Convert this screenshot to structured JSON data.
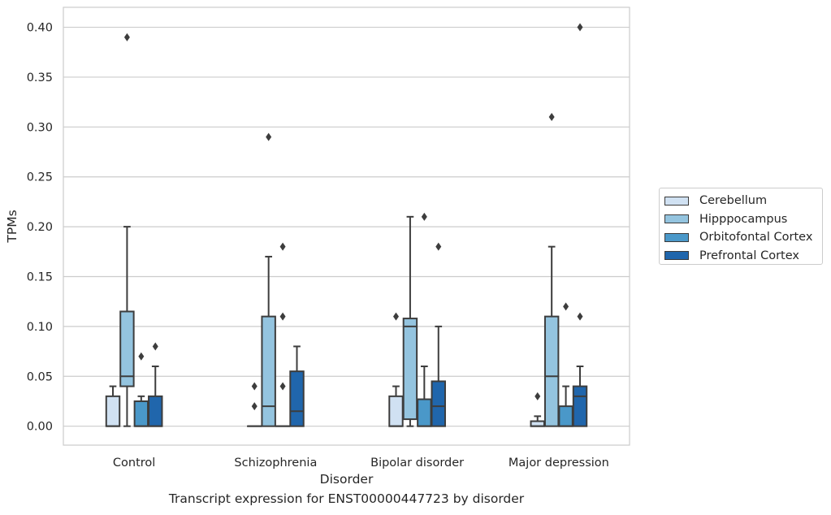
{
  "caption": "Transcript expression for ENST00000447723 by disorder",
  "chart_data": {
    "type": "boxplot",
    "xlabel": "Disorder",
    "ylabel": "TPMs",
    "ylim": [
      -0.019,
      0.42
    ],
    "yticks": [
      0.0,
      0.05,
      0.1,
      0.15,
      0.2,
      0.25,
      0.3,
      0.35,
      0.4
    ],
    "ytick_labels": [
      "0.00",
      "0.05",
      "0.10",
      "0.15",
      "0.20",
      "0.25",
      "0.30",
      "0.35",
      "0.40"
    ],
    "categories": [
      "Control",
      "Schizophrenia",
      "Bipolar disorder",
      "Major depression"
    ],
    "grid": true,
    "legend_position": "right",
    "series": [
      {
        "name": "Cerebellum",
        "color": "#d0e1f2",
        "boxes": [
          {
            "q1": 0.0,
            "median": 0.0,
            "q3": 0.03,
            "whisker_low": 0.0,
            "whisker_high": 0.04,
            "outliers": []
          },
          {
            "q1": 0.0,
            "median": 0.0,
            "q3": 0.0,
            "whisker_low": 0.0,
            "whisker_high": 0.0,
            "outliers": [
              0.02,
              0.04
            ]
          },
          {
            "q1": 0.0,
            "median": 0.0,
            "q3": 0.03,
            "whisker_low": 0.0,
            "whisker_high": 0.04,
            "outliers": [
              0.11
            ]
          },
          {
            "q1": 0.0,
            "median": 0.0,
            "q3": 0.005,
            "whisker_low": 0.0,
            "whisker_high": 0.01,
            "outliers": [
              0.03
            ]
          }
        ]
      },
      {
        "name": "Hipppocampus",
        "color": "#94c4df",
        "boxes": [
          {
            "q1": 0.04,
            "median": 0.05,
            "q3": 0.115,
            "whisker_low": 0.0,
            "whisker_high": 0.2,
            "outliers": [
              0.39
            ]
          },
          {
            "q1": 0.0,
            "median": 0.02,
            "q3": 0.11,
            "whisker_low": 0.0,
            "whisker_high": 0.17,
            "outliers": [
              0.29
            ]
          },
          {
            "q1": 0.007,
            "median": 0.1,
            "q3": 0.108,
            "whisker_low": 0.0,
            "whisker_high": 0.21,
            "outliers": []
          },
          {
            "q1": 0.0,
            "median": 0.05,
            "q3": 0.11,
            "whisker_low": 0.0,
            "whisker_high": 0.18,
            "outliers": [
              0.31
            ]
          }
        ]
      },
      {
        "name": "Orbitofontal Cortex",
        "color": "#4a98c9",
        "boxes": [
          {
            "q1": 0.0,
            "median": 0.0,
            "q3": 0.025,
            "whisker_low": 0.0,
            "whisker_high": 0.03,
            "outliers": [
              0.07
            ]
          },
          {
            "q1": 0.0,
            "median": 0.0,
            "q3": 0.0,
            "whisker_low": 0.0,
            "whisker_high": 0.0,
            "outliers": [
              0.04,
              0.11,
              0.18
            ]
          },
          {
            "q1": 0.0,
            "median": 0.0,
            "q3": 0.027,
            "whisker_low": 0.0,
            "whisker_high": 0.06,
            "outliers": [
              0.21
            ]
          },
          {
            "q1": 0.0,
            "median": 0.0,
            "q3": 0.02,
            "whisker_low": 0.0,
            "whisker_high": 0.04,
            "outliers": [
              0.12
            ]
          }
        ]
      },
      {
        "name": "Prefrontal Cortex",
        "color": "#2066ac",
        "boxes": [
          {
            "q1": 0.0,
            "median": 0.0,
            "q3": 0.03,
            "whisker_low": 0.0,
            "whisker_high": 0.06,
            "outliers": [
              0.08
            ]
          },
          {
            "q1": 0.0,
            "median": 0.015,
            "q3": 0.055,
            "whisker_low": 0.0,
            "whisker_high": 0.08,
            "outliers": []
          },
          {
            "q1": 0.0,
            "median": 0.02,
            "q3": 0.045,
            "whisker_low": 0.0,
            "whisker_high": 0.1,
            "outliers": [
              0.18
            ]
          },
          {
            "q1": 0.0,
            "median": 0.03,
            "q3": 0.04,
            "whisker_low": 0.0,
            "whisker_high": 0.06,
            "outliers": [
              0.11,
              0.4
            ]
          }
        ]
      }
    ]
  }
}
